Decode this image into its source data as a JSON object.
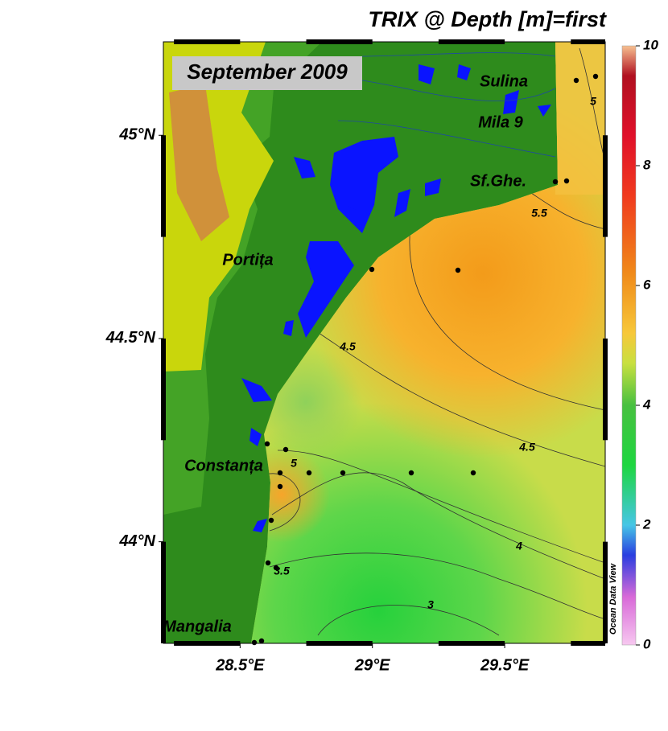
{
  "title": "TRIX @ Depth [m]=first",
  "date_label": "September 2009",
  "places": [
    "Sulina",
    "Mila 9",
    "Sf.Ghe.",
    "Portița",
    "Constanța",
    "Mangalia"
  ],
  "lonlim": [
    28.21,
    29.88
  ],
  "latlim": [
    43.75,
    45.23
  ],
  "lon_ticks": [
    {
      "value": 28.5,
      "label": "28.5°E"
    },
    {
      "value": 29,
      "label": "29°E"
    },
    {
      "value": 29.5,
      "label": "29.5°E"
    }
  ],
  "lat_ticks": [
    {
      "value": 45,
      "label": "45°N"
    },
    {
      "value": 44.5,
      "label": "44.5°N"
    },
    {
      "value": 44,
      "label": "44°N"
    }
  ],
  "colorbar": {
    "lim": [
      0,
      10
    ],
    "ticks": [
      0,
      2,
      4,
      6,
      8,
      10
    ]
  },
  "contour_labels": [
    5,
    5.5,
    4.5,
    4.5,
    5,
    4,
    3.5,
    3
  ],
  "credit": "Ocean Data View"
}
